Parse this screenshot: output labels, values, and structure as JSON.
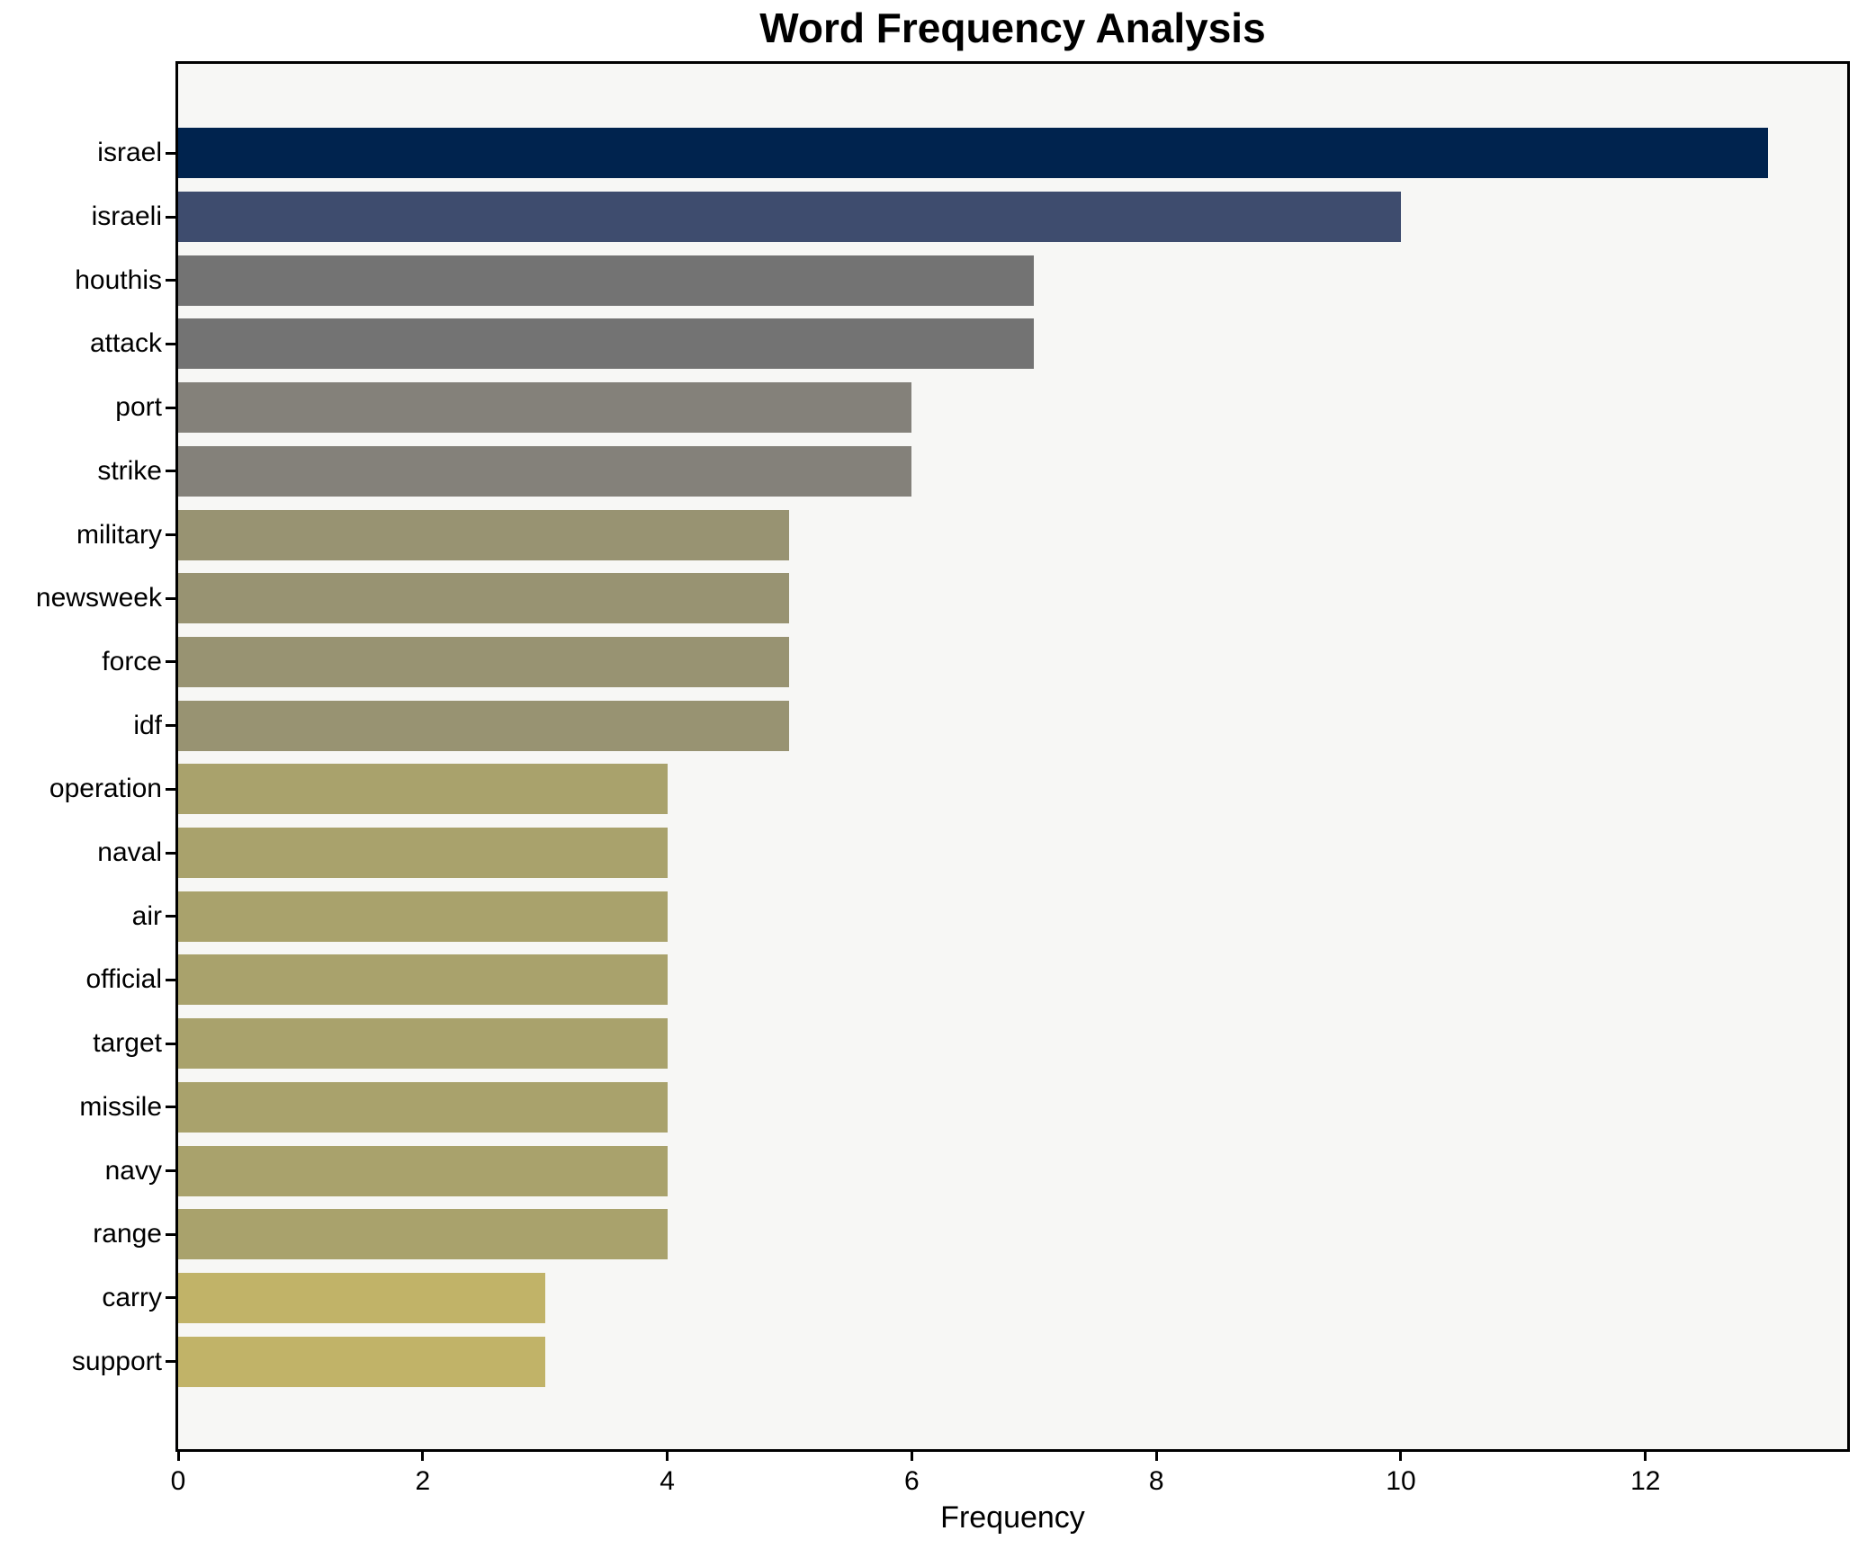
{
  "title": "Word Frequency Analysis",
  "chart_data": {
    "type": "bar",
    "orientation": "horizontal",
    "title": "Word Frequency Analysis",
    "xlabel": "Frequency",
    "ylabel": "",
    "xlim": [
      0,
      13.65
    ],
    "xticks": [
      0,
      2,
      4,
      6,
      8,
      10,
      12
    ],
    "grid": false,
    "legend": false,
    "categories": [
      "israel",
      "israeli",
      "houthis",
      "attack",
      "port",
      "strike",
      "military",
      "newsweek",
      "force",
      "idf",
      "operation",
      "naval",
      "air",
      "official",
      "target",
      "missile",
      "navy",
      "range",
      "carry",
      "support"
    ],
    "values": [
      13,
      10,
      7,
      7,
      6,
      6,
      5,
      5,
      5,
      5,
      4,
      4,
      4,
      4,
      4,
      4,
      4,
      4,
      3,
      3
    ],
    "bar_colors": [
      "#00234e",
      "#3e4c6e",
      "#737373",
      "#737373",
      "#84817a",
      "#84817a",
      "#989372",
      "#989372",
      "#989372",
      "#989372",
      "#a9a26c",
      "#a9a26c",
      "#a9a26c",
      "#a9a26c",
      "#a9a26c",
      "#a9a26c",
      "#a9a26c",
      "#a9a26c",
      "#c1b368",
      "#c1b368"
    ]
  },
  "style": {
    "page_bg": "#ffffff",
    "plot_bg": "#f7f7f5",
    "spine_color": "#000000",
    "text_color": "#000000"
  }
}
